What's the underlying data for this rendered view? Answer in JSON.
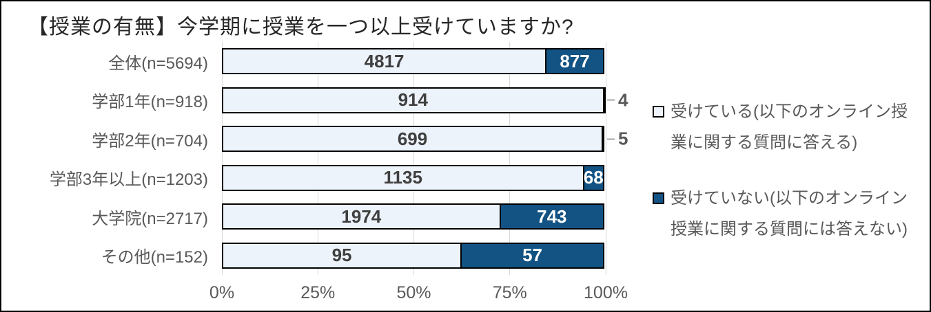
{
  "chart_data": {
    "type": "bar",
    "variant": "horizontal-stacked-100",
    "title": "【授業の有無】今学期に授業を一つ以上受けていますか?",
    "categories": [
      "全体(n=5694)",
      "学部1年(n=918)",
      "学部2年(n=704)",
      "学部3年以上(n=1203)",
      "大学院(n=2717)",
      "その他(n=152)"
    ],
    "series": [
      {
        "name": "受けている(以下のオンライン授業に関する質問に答える)",
        "color": "#edf3fa",
        "values": [
          4817,
          914,
          699,
          1135,
          1974,
          95
        ]
      },
      {
        "name": "受けていない(以下のオンライン授業に関する質問には答えない)",
        "color": "#125384",
        "values": [
          877,
          4,
          5,
          68,
          743,
          57
        ]
      }
    ],
    "x_ticks": [
      "0%",
      "25%",
      "50%",
      "75%",
      "100%"
    ],
    "xlim": [
      0,
      100
    ],
    "grid": true,
    "legend_position": "right",
    "colors": {
      "bar_border": "#000000",
      "gridline": "#d9d9d9",
      "label_text": "#595959",
      "value_text_light_segment": "#3f3f3f",
      "value_text_dark_segment": "#ffffff"
    }
  }
}
